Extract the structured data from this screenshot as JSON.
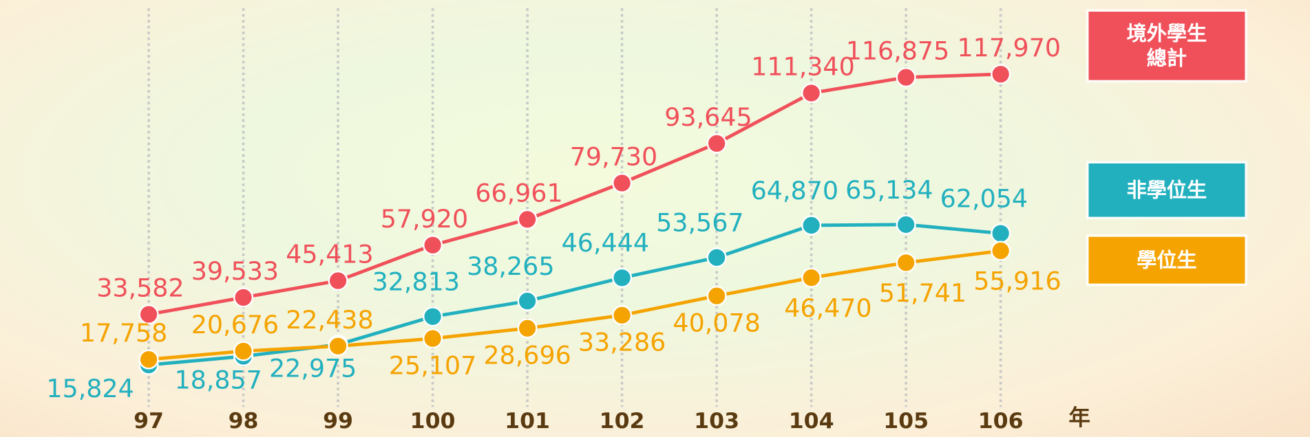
{
  "chart_data": {
    "type": "line",
    "categories": [
      "97",
      "98",
      "99",
      "100",
      "101",
      "102",
      "103",
      "104",
      "105",
      "106"
    ],
    "x_label": "年",
    "grid": true,
    "series": [
      {
        "name": "非學位生",
        "color": "#22b0bf",
        "values": [
          15824,
          18857,
          22975,
          32813,
          38265,
          46444,
          53567,
          64870,
          65134,
          62054
        ],
        "value_labels": [
          "15,824",
          "18,857",
          "22,975",
          "32,813",
          "38,265",
          "46,444",
          "53,567",
          "64,870",
          "65,134",
          "62,054"
        ]
      },
      {
        "name": "學位生",
        "color": "#f5a300",
        "values": [
          17758,
          20676,
          22438,
          25107,
          28696,
          33286,
          40078,
          46470,
          51741,
          55916
        ],
        "value_labels": [
          "17,758",
          "20,676",
          "22,438",
          "25,107",
          "28,696",
          "33,286",
          "40,078",
          "46,470",
          "51,741",
          "55,916"
        ]
      },
      {
        "name": "境外學生總計",
        "color": "#f0505a",
        "values": [
          33582,
          39533,
          45413,
          57920,
          66961,
          79730,
          93645,
          111340,
          116875,
          117970
        ],
        "value_labels": [
          "33,582",
          "39,533",
          "45,413",
          "57,920",
          "66,961",
          "79,730",
          "93,645",
          "111,340",
          "116,875",
          "117,970"
        ]
      }
    ]
  }
}
